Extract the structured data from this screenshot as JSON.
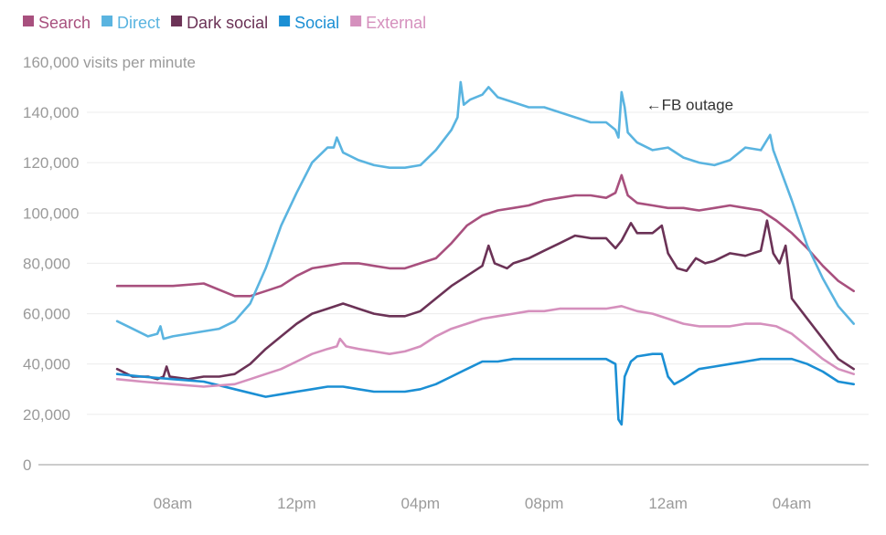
{
  "chart_data": {
    "type": "line",
    "ylabel": "160,000 visits per minute",
    "ylim": [
      0,
      160000
    ],
    "y_ticks": [
      "0",
      "20,000",
      "40,000",
      "60,000",
      "80,000",
      "100,000",
      "120,000",
      "140,000"
    ],
    "x_ticks": [
      {
        "label": "08am",
        "hour": 8
      },
      {
        "label": "12pm",
        "hour": 12
      },
      {
        "label": "04pm",
        "hour": 16
      },
      {
        "label": "08pm",
        "hour": 20
      },
      {
        "label": "12am",
        "hour": 24
      },
      {
        "label": "04am",
        "hour": 28
      }
    ],
    "x_unit": "hour of day (continuing past midnight)",
    "xlim": [
      5.5,
      30.1
    ],
    "legend_position": "top-left",
    "grid": true,
    "annotation": {
      "text": "←FB outage",
      "x": 24,
      "y": 143000
    },
    "series": [
      {
        "name": "Search",
        "color": "#a8507e",
        "points": [
          [
            6.2,
            71000
          ],
          [
            7,
            71000
          ],
          [
            8,
            71000
          ],
          [
            9,
            72000
          ],
          [
            10,
            67000
          ],
          [
            10.5,
            67000
          ],
          [
            11,
            69000
          ],
          [
            11.5,
            71000
          ],
          [
            12,
            75000
          ],
          [
            12.5,
            78000
          ],
          [
            13,
            79000
          ],
          [
            13.5,
            80000
          ],
          [
            14,
            80000
          ],
          [
            14.5,
            79000
          ],
          [
            15,
            78000
          ],
          [
            15.5,
            78000
          ],
          [
            16,
            80000
          ],
          [
            16.5,
            82000
          ],
          [
            17,
            88000
          ],
          [
            17.5,
            95000
          ],
          [
            18,
            99000
          ],
          [
            18.5,
            101000
          ],
          [
            19,
            102000
          ],
          [
            19.5,
            103000
          ],
          [
            20,
            105000
          ],
          [
            20.5,
            106000
          ],
          [
            21,
            107000
          ],
          [
            21.5,
            107000
          ],
          [
            22,
            106000
          ],
          [
            22.3,
            108000
          ],
          [
            22.5,
            115000
          ],
          [
            22.7,
            107000
          ],
          [
            23,
            104000
          ],
          [
            23.5,
            103000
          ],
          [
            24,
            102000
          ],
          [
            24.5,
            102000
          ],
          [
            25,
            101000
          ],
          [
            25.5,
            102000
          ],
          [
            26,
            103000
          ],
          [
            26.5,
            102000
          ],
          [
            27,
            101000
          ],
          [
            27.5,
            97000
          ],
          [
            28,
            92000
          ],
          [
            28.5,
            86000
          ],
          [
            29,
            79000
          ],
          [
            29.5,
            73000
          ],
          [
            30,
            69000
          ]
        ]
      },
      {
        "name": "Direct",
        "color": "#5ab4e0",
        "points": [
          [
            6.2,
            57000
          ],
          [
            6.7,
            54000
          ],
          [
            7.2,
            51000
          ],
          [
            7.5,
            52000
          ],
          [
            7.6,
            55000
          ],
          [
            7.7,
            50000
          ],
          [
            8,
            51000
          ],
          [
            8.5,
            52000
          ],
          [
            9,
            53000
          ],
          [
            9.5,
            54000
          ],
          [
            10,
            57000
          ],
          [
            10.5,
            64000
          ],
          [
            11,
            78000
          ],
          [
            11.5,
            95000
          ],
          [
            12,
            108000
          ],
          [
            12.5,
            120000
          ],
          [
            13,
            126000
          ],
          [
            13.2,
            126000
          ],
          [
            13.3,
            130000
          ],
          [
            13.5,
            124000
          ],
          [
            14,
            121000
          ],
          [
            14.5,
            119000
          ],
          [
            15,
            118000
          ],
          [
            15.5,
            118000
          ],
          [
            16,
            119000
          ],
          [
            16.5,
            125000
          ],
          [
            17,
            133000
          ],
          [
            17.2,
            138000
          ],
          [
            17.3,
            152000
          ],
          [
            17.4,
            143000
          ],
          [
            17.6,
            145000
          ],
          [
            18,
            147000
          ],
          [
            18.2,
            150000
          ],
          [
            18.5,
            146000
          ],
          [
            19,
            144000
          ],
          [
            19.5,
            142000
          ],
          [
            20,
            142000
          ],
          [
            20.5,
            140000
          ],
          [
            21,
            138000
          ],
          [
            21.5,
            136000
          ],
          [
            22,
            136000
          ],
          [
            22.3,
            133000
          ],
          [
            22.4,
            130000
          ],
          [
            22.5,
            148000
          ],
          [
            22.6,
            142000
          ],
          [
            22.7,
            132000
          ],
          [
            23,
            128000
          ],
          [
            23.5,
            125000
          ],
          [
            24,
            126000
          ],
          [
            24.5,
            122000
          ],
          [
            25,
            120000
          ],
          [
            25.5,
            119000
          ],
          [
            26,
            121000
          ],
          [
            26.5,
            126000
          ],
          [
            27,
            125000
          ],
          [
            27.2,
            129000
          ],
          [
            27.3,
            131000
          ],
          [
            27.4,
            125000
          ],
          [
            28,
            105000
          ],
          [
            28.5,
            87000
          ],
          [
            29,
            74000
          ],
          [
            29.5,
            63000
          ],
          [
            30,
            56000
          ]
        ]
      },
      {
        "name": "Dark social",
        "color": "#6b3256",
        "points": [
          [
            6.2,
            38000
          ],
          [
            6.7,
            35000
          ],
          [
            7.2,
            35000
          ],
          [
            7.5,
            34000
          ],
          [
            7.7,
            35000
          ],
          [
            7.8,
            39000
          ],
          [
            7.9,
            35000
          ],
          [
            8.5,
            34000
          ],
          [
            9,
            35000
          ],
          [
            9.5,
            35000
          ],
          [
            10,
            36000
          ],
          [
            10.5,
            40000
          ],
          [
            11,
            46000
          ],
          [
            11.5,
            51000
          ],
          [
            12,
            56000
          ],
          [
            12.5,
            60000
          ],
          [
            13,
            62000
          ],
          [
            13.5,
            64000
          ],
          [
            14,
            62000
          ],
          [
            14.5,
            60000
          ],
          [
            15,
            59000
          ],
          [
            15.5,
            59000
          ],
          [
            16,
            61000
          ],
          [
            16.5,
            66000
          ],
          [
            17,
            71000
          ],
          [
            17.5,
            75000
          ],
          [
            18,
            79000
          ],
          [
            18.2,
            87000
          ],
          [
            18.4,
            80000
          ],
          [
            18.8,
            78000
          ],
          [
            19,
            80000
          ],
          [
            19.5,
            82000
          ],
          [
            20,
            85000
          ],
          [
            20.5,
            88000
          ],
          [
            21,
            91000
          ],
          [
            21.5,
            90000
          ],
          [
            22,
            90000
          ],
          [
            22.3,
            86000
          ],
          [
            22.5,
            89000
          ],
          [
            22.8,
            96000
          ],
          [
            23,
            92000
          ],
          [
            23.5,
            92000
          ],
          [
            23.8,
            95000
          ],
          [
            24,
            84000
          ],
          [
            24.3,
            78000
          ],
          [
            24.6,
            77000
          ],
          [
            24.9,
            82000
          ],
          [
            25.2,
            80000
          ],
          [
            25.5,
            81000
          ],
          [
            26,
            84000
          ],
          [
            26.5,
            83000
          ],
          [
            27,
            85000
          ],
          [
            27.2,
            97000
          ],
          [
            27.4,
            84000
          ],
          [
            27.6,
            80000
          ],
          [
            27.8,
            87000
          ],
          [
            28,
            66000
          ],
          [
            28.5,
            58000
          ],
          [
            29,
            50000
          ],
          [
            29.5,
            42000
          ],
          [
            30,
            38000
          ]
        ]
      },
      {
        "name": "Social",
        "color": "#1b8fd4",
        "points": [
          [
            6.2,
            36000
          ],
          [
            7,
            35000
          ],
          [
            8,
            34000
          ],
          [
            9,
            33000
          ],
          [
            10,
            30000
          ],
          [
            11,
            27000
          ],
          [
            11.5,
            28000
          ],
          [
            12,
            29000
          ],
          [
            12.5,
            30000
          ],
          [
            13,
            31000
          ],
          [
            13.5,
            31000
          ],
          [
            14,
            30000
          ],
          [
            14.5,
            29000
          ],
          [
            15,
            29000
          ],
          [
            15.5,
            29000
          ],
          [
            16,
            30000
          ],
          [
            16.5,
            32000
          ],
          [
            17,
            35000
          ],
          [
            17.5,
            38000
          ],
          [
            18,
            41000
          ],
          [
            18.5,
            41000
          ],
          [
            19,
            42000
          ],
          [
            19.5,
            42000
          ],
          [
            20,
            42000
          ],
          [
            20.5,
            42000
          ],
          [
            21,
            42000
          ],
          [
            21.5,
            42000
          ],
          [
            22,
            42000
          ],
          [
            22.3,
            40000
          ],
          [
            22.4,
            18000
          ],
          [
            22.5,
            16000
          ],
          [
            22.6,
            35000
          ],
          [
            22.8,
            41000
          ],
          [
            23,
            43000
          ],
          [
            23.5,
            44000
          ],
          [
            23.8,
            44000
          ],
          [
            24,
            35000
          ],
          [
            24.2,
            32000
          ],
          [
            24.5,
            34000
          ],
          [
            25,
            38000
          ],
          [
            25.5,
            39000
          ],
          [
            26,
            40000
          ],
          [
            26.5,
            41000
          ],
          [
            27,
            42000
          ],
          [
            27.5,
            42000
          ],
          [
            28,
            42000
          ],
          [
            28.5,
            40000
          ],
          [
            29,
            37000
          ],
          [
            29.5,
            33000
          ],
          [
            30,
            32000
          ]
        ]
      },
      {
        "name": "External",
        "color": "#d590bd",
        "points": [
          [
            6.2,
            34000
          ],
          [
            7,
            33000
          ],
          [
            8,
            32000
          ],
          [
            9,
            31000
          ],
          [
            10,
            32000
          ],
          [
            10.5,
            34000
          ],
          [
            11,
            36000
          ],
          [
            11.5,
            38000
          ],
          [
            12,
            41000
          ],
          [
            12.5,
            44000
          ],
          [
            13,
            46000
          ],
          [
            13.3,
            47000
          ],
          [
            13.4,
            50000
          ],
          [
            13.6,
            47000
          ],
          [
            14,
            46000
          ],
          [
            14.5,
            45000
          ],
          [
            15,
            44000
          ],
          [
            15.5,
            45000
          ],
          [
            16,
            47000
          ],
          [
            16.5,
            51000
          ],
          [
            17,
            54000
          ],
          [
            17.5,
            56000
          ],
          [
            18,
            58000
          ],
          [
            18.5,
            59000
          ],
          [
            19,
            60000
          ],
          [
            19.5,
            61000
          ],
          [
            20,
            61000
          ],
          [
            20.5,
            62000
          ],
          [
            21,
            62000
          ],
          [
            21.5,
            62000
          ],
          [
            22,
            62000
          ],
          [
            22.5,
            63000
          ],
          [
            23,
            61000
          ],
          [
            23.5,
            60000
          ],
          [
            24,
            58000
          ],
          [
            24.5,
            56000
          ],
          [
            25,
            55000
          ],
          [
            25.5,
            55000
          ],
          [
            26,
            55000
          ],
          [
            26.5,
            56000
          ],
          [
            27,
            56000
          ],
          [
            27.5,
            55000
          ],
          [
            28,
            52000
          ],
          [
            28.5,
            47000
          ],
          [
            29,
            42000
          ],
          [
            29.5,
            38000
          ],
          [
            30,
            36000
          ]
        ]
      }
    ]
  }
}
